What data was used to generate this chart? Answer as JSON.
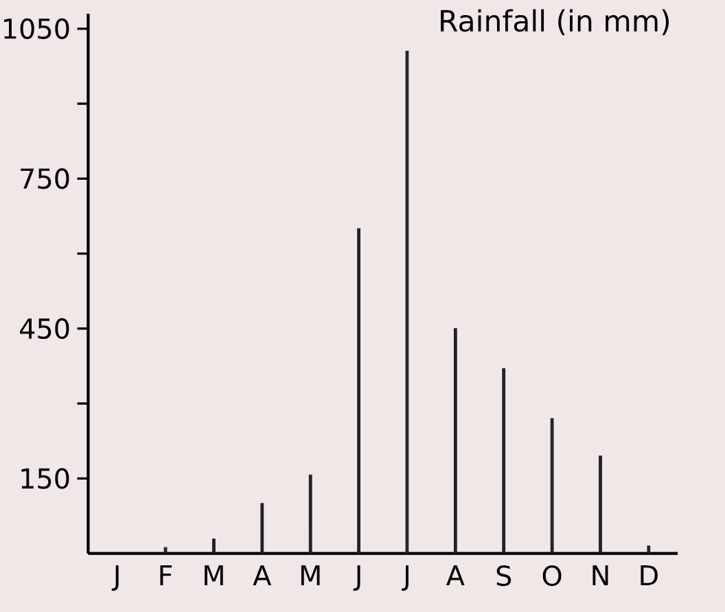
{
  "chart_data": {
    "type": "bar",
    "title": "Rainfall (in mm)",
    "categories": [
      "J",
      "F",
      "M",
      "A",
      "M",
      "J",
      "J",
      "A",
      "S",
      "O",
      "N",
      "D"
    ],
    "values": [
      0,
      12,
      29,
      100,
      157,
      650,
      1005,
      450,
      370,
      270,
      195,
      15
    ],
    "color": "#222222",
    "ylim": [
      0,
      1080
    ],
    "yticks": [
      150,
      {
        "value": 300,
        "label": null
      },
      450,
      {
        "value": 600,
        "label": null
      },
      750,
      {
        "value": 900,
        "label": null
      },
      1050
    ],
    "grid": false
  }
}
